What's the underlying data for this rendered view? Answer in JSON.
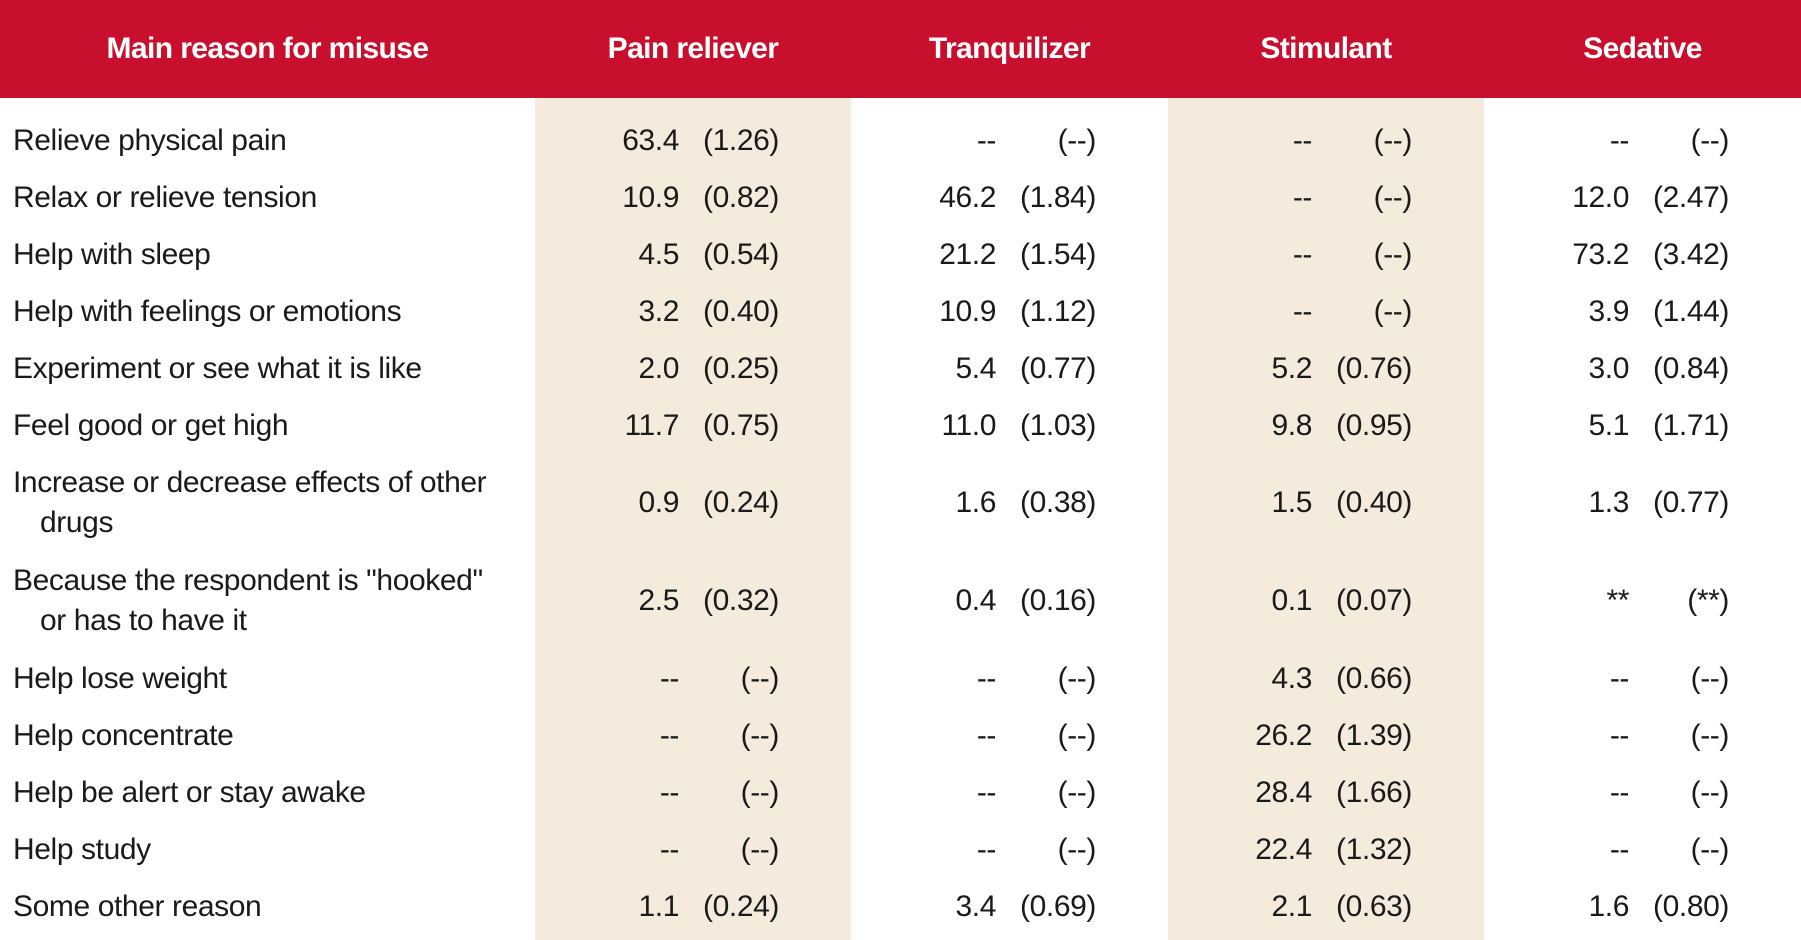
{
  "header": [
    "Main reason for misuse",
    "Pain reliever",
    "Tranquilizer",
    "Stimulant",
    "Sedative"
  ],
  "rows": [
    {
      "label": [
        "Relieve physical pain"
      ],
      "cells": [
        [
          "63.4",
          "(1.26)"
        ],
        [
          "--",
          "(--)"
        ],
        [
          "--",
          "(--)"
        ],
        [
          "--",
          "(--)"
        ]
      ]
    },
    {
      "label": [
        "Relax or relieve tension"
      ],
      "cells": [
        [
          "10.9",
          "(0.82)"
        ],
        [
          "46.2",
          "(1.84)"
        ],
        [
          "--",
          "(--)"
        ],
        [
          "12.0",
          "(2.47)"
        ]
      ]
    },
    {
      "label": [
        "Help with sleep"
      ],
      "cells": [
        [
          "4.5",
          "(0.54)"
        ],
        [
          "21.2",
          "(1.54)"
        ],
        [
          "--",
          "(--)"
        ],
        [
          "73.2",
          "(3.42)"
        ]
      ]
    },
    {
      "label": [
        "Help with feelings or emotions"
      ],
      "cells": [
        [
          "3.2",
          "(0.40)"
        ],
        [
          "10.9",
          "(1.12)"
        ],
        [
          "--",
          "(--)"
        ],
        [
          "3.9",
          "(1.44)"
        ]
      ]
    },
    {
      "label": [
        "Experiment or see what it is like"
      ],
      "cells": [
        [
          "2.0",
          "(0.25)"
        ],
        [
          "5.4",
          "(0.77)"
        ],
        [
          "5.2",
          "(0.76)"
        ],
        [
          "3.0",
          "(0.84)"
        ]
      ]
    },
    {
      "label": [
        "Feel good or get high"
      ],
      "cells": [
        [
          "11.7",
          "(0.75)"
        ],
        [
          "11.0",
          "(1.03)"
        ],
        [
          "9.8",
          "(0.95)"
        ],
        [
          "5.1",
          "(1.71)"
        ]
      ]
    },
    {
      "label": [
        "Increase or decrease effects of other",
        "drugs"
      ],
      "cells": [
        [
          "0.9",
          "(0.24)"
        ],
        [
          "1.6",
          "(0.38)"
        ],
        [
          "1.5",
          "(0.40)"
        ],
        [
          "1.3",
          "(0.77)"
        ]
      ]
    },
    {
      "label": [
        "Because the respondent is \"hooked\"",
        "or has to have it"
      ],
      "cells": [
        [
          "2.5",
          "(0.32)"
        ],
        [
          "0.4",
          "(0.16)"
        ],
        [
          "0.1",
          "(0.07)"
        ],
        [
          "**",
          "(**)"
        ]
      ]
    },
    {
      "label": [
        "Help lose weight"
      ],
      "cells": [
        [
          "--",
          "(--)"
        ],
        [
          "--",
          "(--)"
        ],
        [
          "4.3",
          "(0.66)"
        ],
        [
          "--",
          "(--)"
        ]
      ]
    },
    {
      "label": [
        "Help concentrate"
      ],
      "cells": [
        [
          "--",
          "(--)"
        ],
        [
          "--",
          "(--)"
        ],
        [
          "26.2",
          "(1.39)"
        ],
        [
          "--",
          "(--)"
        ]
      ]
    },
    {
      "label": [
        "Help be alert or stay awake"
      ],
      "cells": [
        [
          "--",
          "(--)"
        ],
        [
          "--",
          "(--)"
        ],
        [
          "28.4",
          "(1.66)"
        ],
        [
          "--",
          "(--)"
        ]
      ]
    },
    {
      "label": [
        "Help study"
      ],
      "cells": [
        [
          "--",
          "(--)"
        ],
        [
          "--",
          "(--)"
        ],
        [
          "22.4",
          "(1.32)"
        ],
        [
          "--",
          "(--)"
        ]
      ]
    },
    {
      "label": [
        "Some other reason"
      ],
      "cells": [
        [
          "1.1",
          "(0.24)"
        ],
        [
          "3.4",
          "(0.69)"
        ],
        [
          "2.1",
          "(0.63)"
        ],
        [
          "1.6",
          "(0.80)"
        ]
      ]
    }
  ]
}
